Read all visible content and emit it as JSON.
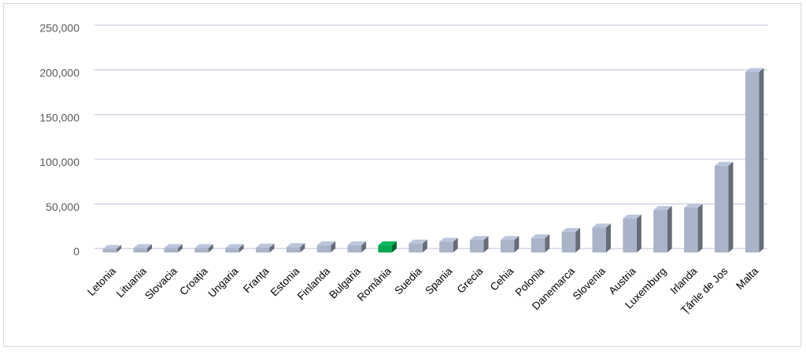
{
  "chart_data": {
    "type": "bar3d",
    "categories": [
      "Letonia",
      "Lituania",
      "Slovacia",
      "Croația",
      "Ungaria",
      "Franța",
      "Estonia",
      "Finlanda",
      "Bulgaria",
      "România",
      "Suedia",
      "Spania",
      "Grecia",
      "Cehia",
      "Polonia",
      "Danemarca",
      "Slovenia",
      "Austria",
      "Luxemburg",
      "Irlanda",
      "Țările de Jos",
      "Malta"
    ],
    "values": [
      4000,
      5000,
      5000,
      5000,
      5000,
      5500,
      6000,
      8000,
      8000,
      8000,
      10000,
      12000,
      14000,
      14000,
      16000,
      23000,
      28000,
      38000,
      47500,
      50000,
      97000,
      202000
    ],
    "colors": [
      "#aab4c8",
      "#aab4c8",
      "#aab4c8",
      "#aab4c8",
      "#aab4c8",
      "#aab4c8",
      "#aab4c8",
      "#aab4c8",
      "#aab4c8",
      "#00a651",
      "#aab4c8",
      "#aab4c8",
      "#aab4c8",
      "#aab4c8",
      "#aab4c8",
      "#aab4c8",
      "#aab4c8",
      "#aab4c8",
      "#aab4c8",
      "#aab4c8",
      "#aab4c8",
      "#aab4c8"
    ],
    "ylim": [
      0,
      250000
    ],
    "yticks": [
      0,
      {
        "value": 50000,
        "label": "50,000"
      },
      {
        "value": 100000,
        "label": "100,000"
      },
      {
        "value": 150000,
        "label": "150,000"
      },
      {
        "value": 200000,
        "label": "200,000"
      },
      {
        "value": 250000,
        "label": "250,000"
      }
    ],
    "grid": true
  }
}
